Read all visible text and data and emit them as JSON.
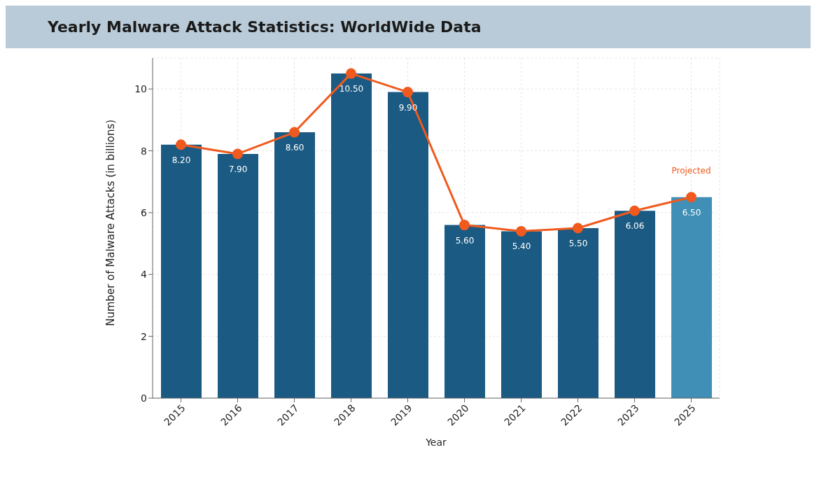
{
  "chart_data": {
    "type": "bar",
    "title": "Yearly Malware Attack Statistics: WorldWide Data",
    "xlabel": "Year",
    "ylabel": "Number of Malware Attacks (in billions)",
    "categories": [
      "2015",
      "2016",
      "2017",
      "2018",
      "2019",
      "2020",
      "2021",
      "2022",
      "2023",
      "2025"
    ],
    "series": [
      {
        "colors": [
          "#1b5a82",
          "#1b5a82",
          "#1b5a82",
          "#1b5a82",
          "#1b5a82",
          "#1b5a82",
          "#1b5a82",
          "#1b5a82",
          "#1b5a82",
          "#3f8fb6"
        ],
        "values": [
          8.2,
          7.9,
          8.6,
          10.5,
          9.9,
          5.6,
          5.4,
          5.5,
          6.06,
          6.5
        ],
        "value_labels": [
          "8.20",
          "7.90",
          "8.60",
          "10.50",
          "9.90",
          "5.60",
          "5.40",
          "5.50",
          "6.06",
          "6.50"
        ]
      },
      {
        "type": "line",
        "color": "#f05a1e",
        "values": [
          8.2,
          7.9,
          8.6,
          10.5,
          9.9,
          5.6,
          5.4,
          5.5,
          6.06,
          6.5
        ]
      }
    ],
    "annotations": [
      {
        "text": "Projected",
        "x": "2025",
        "y": 6.5
      }
    ],
    "ylim": [
      0,
      11
    ],
    "yticks": [
      0,
      2,
      4,
      6,
      8,
      10
    ],
    "grid": true,
    "marker": "circle",
    "line_style": "solid"
  }
}
